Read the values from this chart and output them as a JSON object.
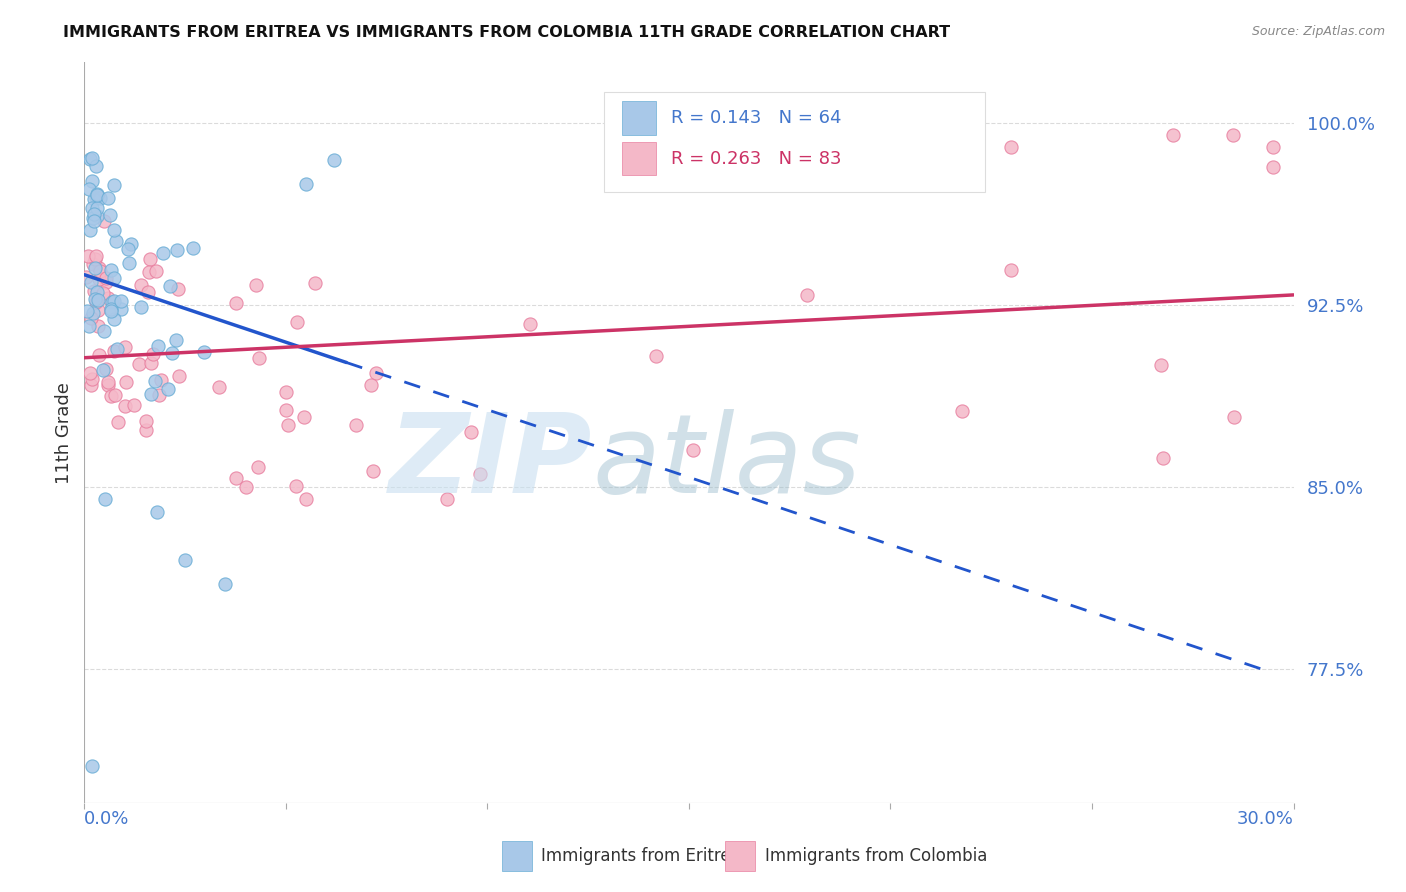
{
  "title": "IMMIGRANTS FROM ERITREA VS IMMIGRANTS FROM COLOMBIA 11TH GRADE CORRELATION CHART",
  "source": "Source: ZipAtlas.com",
  "ylabel": "11th Grade",
  "ytick_labels": [
    "77.5%",
    "85.0%",
    "92.5%",
    "100.0%"
  ],
  "ytick_values": [
    0.775,
    0.85,
    0.925,
    1.0
  ],
  "xlim": [
    0.0,
    0.3
  ],
  "ylim": [
    0.72,
    1.025
  ],
  "eritrea_color": "#a8c8e8",
  "colombia_color": "#f4b8c8",
  "eritrea_edge_color": "#6baed6",
  "colombia_edge_color": "#e880a0",
  "trend_eritrea_color": "#2255cc",
  "trend_colombia_color": "#cc3366",
  "tick_color": "#4477cc",
  "watermark_color1": "#c8dff0",
  "watermark_color2": "#9abccc",
  "legend_box_color": "#f8f8f8",
  "legend_box_edge": "#dddddd",
  "background": "#ffffff",
  "grid_color": "#cccccc"
}
